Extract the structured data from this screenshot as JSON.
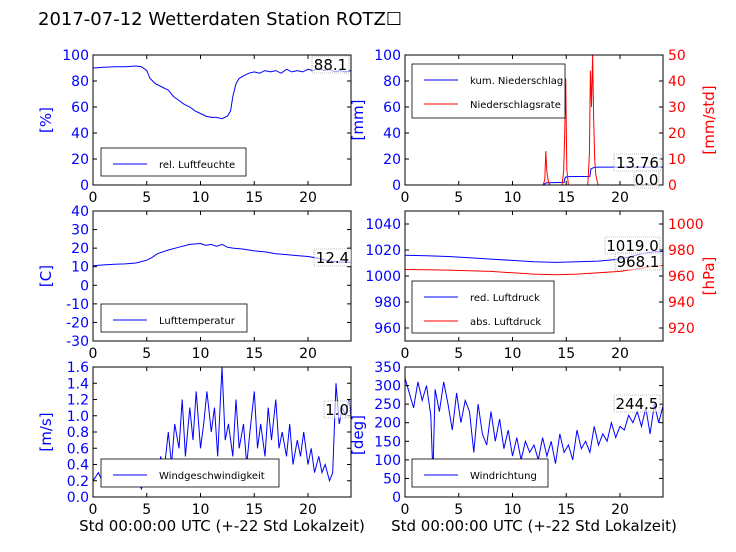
{
  "page": {
    "title": "2017-07-12 Wetterdaten Station ROTZ☐",
    "xlabel_bottom": "Std 00:00:00 UTC (+-22 Std Lokalzeit)"
  },
  "colors": {
    "primary": "#0000ff",
    "secondary": "#ff0000",
    "axis": "#000000"
  },
  "chart_data": [
    {
      "id": "humidity",
      "type": "line",
      "ylabel": "[%]",
      "xlim": [
        0,
        24
      ],
      "ylim": [
        0,
        100
      ],
      "xticks": [
        0,
        5,
        10,
        15,
        20
      ],
      "yticks": [
        0,
        20,
        40,
        60,
        80,
        100
      ],
      "grid": false,
      "legend": "bottom-left",
      "annotation": "88.1",
      "series": [
        {
          "name": "rel. Luftfeuchte",
          "color": "#0000ff",
          "x": [
            0,
            1,
            2,
            3,
            4,
            4.5,
            5,
            5.3,
            5.8,
            6.5,
            7,
            7.5,
            8,
            8.5,
            9,
            9.5,
            10,
            10.5,
            11,
            11.5,
            12,
            12.5,
            12.8,
            13,
            13.3,
            13.6,
            14,
            14.5,
            15,
            15.5,
            16,
            16.5,
            17,
            17.5,
            18,
            18.5,
            19,
            19.5,
            20,
            20.5,
            21,
            21.5,
            22,
            22.5,
            23,
            23.5,
            24
          ],
          "y": [
            90,
            90.5,
            91,
            91,
            91.5,
            91,
            88,
            82,
            78,
            75,
            73,
            68,
            65,
            62,
            60,
            57,
            55,
            53,
            52,
            52,
            51,
            53,
            57,
            68,
            78,
            82,
            84,
            86,
            87,
            86,
            88,
            87,
            88,
            86,
            89,
            87,
            88,
            87,
            89,
            88,
            90,
            88,
            89,
            87,
            88,
            87,
            88
          ]
        }
      ]
    },
    {
      "id": "precipitation",
      "type": "line",
      "ylabel": "[mm]",
      "ylabel_right": "[mm/std]",
      "xlim": [
        0,
        24
      ],
      "ylim": [
        0,
        100
      ],
      "ylim_right": [
        0,
        50
      ],
      "xticks": [
        0,
        5,
        10,
        15,
        20
      ],
      "yticks": [
        0,
        20,
        40,
        60,
        80,
        100
      ],
      "yticks_right": [
        0,
        10,
        20,
        30,
        40,
        50
      ],
      "grid": false,
      "legend": "top-left",
      "annotations": [
        "13.76",
        "0.0"
      ],
      "series": [
        {
          "name": "kum. Niederschlag",
          "color": "#0000ff",
          "axis": "left",
          "x": [
            0,
            12.9,
            13.0,
            13.2,
            14.8,
            14.9,
            15.2,
            17.2,
            17.3,
            17.6,
            18.0,
            24
          ],
          "y": [
            0,
            0,
            1.0,
            1.8,
            2.0,
            6.0,
            6.5,
            6.6,
            12.5,
            13.5,
            13.76,
            13.76
          ]
        },
        {
          "name": "Niederschlagsrate",
          "color": "#ff0000",
          "axis": "right",
          "x": [
            0,
            12.85,
            13.0,
            13.1,
            13.2,
            13.35,
            13.5,
            14.6,
            14.75,
            14.85,
            14.95,
            15.05,
            15.2,
            17.0,
            17.15,
            17.25,
            17.35,
            17.45,
            17.55,
            17.65,
            17.75,
            17.9,
            18.0,
            18.2,
            24
          ],
          "y": [
            0,
            0,
            2,
            13,
            5,
            1,
            0,
            0,
            5,
            18,
            41,
            6,
            0,
            0,
            12,
            44,
            30,
            50,
            25,
            10,
            4,
            1,
            0,
            0,
            0
          ]
        }
      ]
    },
    {
      "id": "temperature",
      "type": "line",
      "ylabel": "[C]",
      "xlim": [
        0,
        24
      ],
      "ylim": [
        -30,
        40
      ],
      "xticks": [
        0,
        5,
        10,
        15,
        20
      ],
      "yticks": [
        -30,
        -20,
        -10,
        0,
        10,
        20,
        30,
        40
      ],
      "grid": false,
      "legend": "bottom-left",
      "annotation": "12.4",
      "series": [
        {
          "name": "Lufttemperatur",
          "color": "#0000ff",
          "x": [
            0,
            1,
            2,
            3,
            4,
            5,
            5.5,
            6,
            7,
            8,
            9,
            10,
            10.5,
            11,
            11.5,
            12,
            12.5,
            13,
            14,
            15,
            16,
            17,
            18,
            19,
            20,
            21,
            22,
            23,
            24
          ],
          "y": [
            10.5,
            11,
            11.3,
            11.5,
            12,
            13.5,
            15,
            17,
            19,
            20.5,
            22,
            22.5,
            21.5,
            22,
            21,
            22,
            20.5,
            20,
            19.5,
            18.5,
            18,
            17,
            16.5,
            16,
            15.5,
            14.5,
            13,
            12.5,
            12.4
          ]
        }
      ]
    },
    {
      "id": "pressure",
      "type": "line",
      "ylabel_right": "[hPa]",
      "xlim": [
        0,
        24
      ],
      "ylim": [
        950,
        1050
      ],
      "ylim_right": [
        910,
        1010
      ],
      "xticks": [
        0,
        5,
        10,
        15,
        20
      ],
      "yticks": [
        960,
        980,
        1000,
        1020,
        1040
      ],
      "yticks_right": [
        920,
        940,
        960,
        980,
        1000
      ],
      "grid": false,
      "legend": "bottom-left",
      "annotations": [
        "1019.0",
        "968.1"
      ],
      "series": [
        {
          "name": "red. Luftdruck",
          "color": "#0000ff",
          "axis": "left",
          "x": [
            0,
            2,
            4,
            6,
            8,
            10,
            12,
            14,
            16,
            18,
            20,
            21,
            22,
            23,
            24
          ],
          "y": [
            1016,
            1015.5,
            1015,
            1014,
            1013,
            1012,
            1011,
            1010.5,
            1011,
            1011.5,
            1013,
            1015,
            1017,
            1018.5,
            1019
          ]
        },
        {
          "name": "abs. Luftdruck",
          "color": "#ff0000",
          "axis": "right",
          "x": [
            0,
            2,
            4,
            6,
            8,
            10,
            12,
            14,
            16,
            18,
            20,
            22,
            23,
            24
          ],
          "y": [
            965,
            964.8,
            964.5,
            964,
            963.5,
            962.5,
            961.5,
            961,
            961.5,
            962.5,
            963.5,
            966,
            967.5,
            968.1
          ]
        }
      ]
    },
    {
      "id": "windspeed",
      "type": "line",
      "ylabel": "[m/s]",
      "xlabel": "Std 00:00:00 UTC (+-22 Std Lokalzeit)",
      "xlim": [
        0,
        24
      ],
      "ylim": [
        0,
        1.6
      ],
      "xticks": [
        0,
        5,
        10,
        15,
        20
      ],
      "yticks": [
        0.0,
        0.2,
        0.4,
        0.6,
        0.8,
        1.0,
        1.2,
        1.4,
        1.6
      ],
      "grid": false,
      "legend": "bottom-left",
      "annotation": "1.0",
      "series": [
        {
          "name": "Windgeschwindigkeit",
          "color": "#0000ff",
          "x": [
            0,
            0.5,
            1,
            1.5,
            2,
            2.5,
            3,
            3.5,
            4,
            4.5,
            5,
            5.5,
            6,
            6.3,
            6.6,
            7,
            7.3,
            7.6,
            8,
            8.3,
            8.6,
            9,
            9.3,
            9.6,
            10,
            10.3,
            10.6,
            11,
            11.3,
            11.6,
            12,
            12.3,
            12.6,
            13,
            13.3,
            13.6,
            14,
            14.3,
            14.6,
            15,
            15.3,
            15.6,
            16,
            16.3,
            16.6,
            17,
            17.3,
            17.6,
            18,
            18.3,
            18.6,
            19,
            19.3,
            19.6,
            20,
            20.3,
            20.6,
            21,
            21.3,
            21.6,
            22,
            22.3,
            22.6,
            22.9,
            23.2,
            23.5,
            23.8,
            24
          ],
          "y": [
            0.2,
            0.3,
            0.15,
            0.25,
            0.2,
            0.3,
            0.15,
            0.2,
            0.25,
            0.1,
            0.3,
            0.2,
            0.25,
            0.5,
            0.3,
            0.8,
            0.4,
            0.9,
            0.6,
            1.2,
            0.5,
            1.1,
            0.7,
            1.3,
            0.6,
            0.9,
            1.3,
            0.8,
            1.1,
            0.5,
            1.6,
            0.7,
            0.9,
            0.5,
            1.2,
            0.6,
            0.9,
            0.4,
            0.8,
            1.3,
            0.6,
            0.9,
            0.5,
            1.1,
            0.7,
            1.2,
            0.6,
            0.8,
            0.5,
            0.9,
            0.4,
            0.7,
            0.5,
            0.8,
            0.4,
            0.6,
            0.3,
            0.5,
            0.3,
            0.4,
            0.2,
            0.3,
            1.4,
            0.9,
            1.1,
            1.0,
            1.2,
            1.0
          ]
        }
      ]
    },
    {
      "id": "winddirection",
      "type": "line",
      "ylabel": "[deg]",
      "xlabel": "Std 00:00:00 UTC (+-22 Std Lokalzeit)",
      "xlim": [
        0,
        24
      ],
      "ylim": [
        0,
        350
      ],
      "xticks": [
        0,
        5,
        10,
        15,
        20
      ],
      "yticks": [
        0,
        50,
        100,
        150,
        200,
        250,
        300,
        350
      ],
      "grid": false,
      "legend": "bottom-left",
      "annotation": "244.5",
      "series": [
        {
          "name": "Windrichtung",
          "color": "#0000ff",
          "x": [
            0,
            0.4,
            0.8,
            1.2,
            1.6,
            2,
            2.4,
            2.6,
            2.8,
            3.2,
            3.6,
            4,
            4.4,
            4.8,
            5.2,
            5.6,
            6,
            6.4,
            6.8,
            7.2,
            7.6,
            8,
            8.4,
            8.8,
            9.2,
            9.6,
            10,
            10.4,
            10.8,
            11.2,
            11.6,
            12,
            12.4,
            12.8,
            13.2,
            13.6,
            14,
            14.4,
            14.8,
            15.2,
            15.6,
            16,
            16.4,
            16.8,
            17.2,
            17.6,
            18,
            18.4,
            18.8,
            19.2,
            19.6,
            20,
            20.4,
            20.8,
            21.2,
            21.6,
            22,
            22.4,
            22.8,
            23.2,
            23.6,
            24
          ],
          "y": [
            320,
            280,
            240,
            310,
            260,
            300,
            220,
            60,
            290,
            230,
            310,
            250,
            180,
            280,
            200,
            260,
            230,
            120,
            250,
            170,
            140,
            230,
            150,
            210,
            130,
            180,
            110,
            160,
            100,
            150,
            120,
            140,
            100,
            160,
            110,
            150,
            90,
            170,
            120,
            140,
            100,
            180,
            130,
            150,
            120,
            190,
            140,
            170,
            150,
            200,
            160,
            190,
            180,
            220,
            200,
            230,
            190,
            240,
            170,
            250,
            200,
            245
          ]
        }
      ]
    }
  ]
}
